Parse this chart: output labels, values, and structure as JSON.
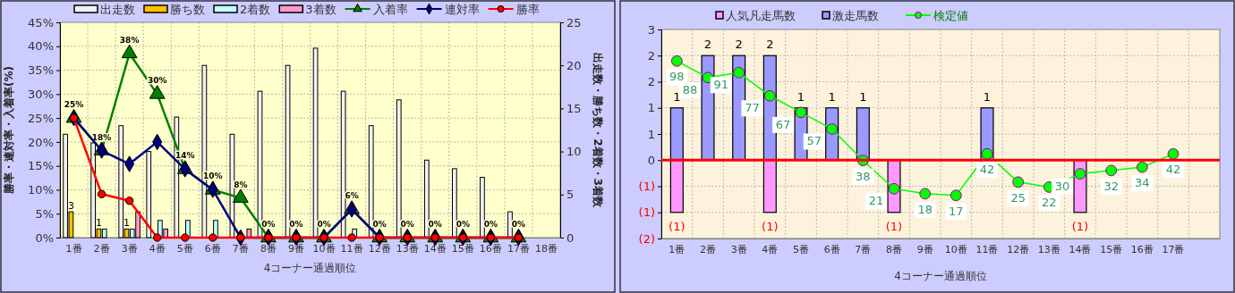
{
  "chart_data": [
    {
      "type": "bar",
      "xlabel": "4コーナー通過順位",
      "ylabel": "勝率・連対率・入着率(%)",
      "y2label": "出走数・勝ち数・2着数・3着数",
      "categories": [
        "1番",
        "2番",
        "3番",
        "4番",
        "5番",
        "6番",
        "7番",
        "8番",
        "9番",
        "10番",
        "11番",
        "12番",
        "13番",
        "14番",
        "15番",
        "16番",
        "17番",
        "18番"
      ],
      "ylim": [
        0,
        45
      ],
      "yticks": [
        {
          "value": 0,
          "label": "0%"
        },
        {
          "value": 5,
          "label": "5%"
        },
        {
          "value": 10,
          "label": "10%"
        },
        {
          "value": 15,
          "label": "15%"
        },
        {
          "value": 20,
          "label": "20%"
        },
        {
          "value": 25,
          "label": "25%"
        },
        {
          "value": 30,
          "label": "30%"
        },
        {
          "value": 35,
          "label": "35%"
        },
        {
          "value": 40,
          "label": "40%"
        },
        {
          "value": 45,
          "label": "45%"
        }
      ],
      "y2lim": [
        0,
        25
      ],
      "y2ticks": [
        0,
        5,
        10,
        15,
        20,
        25
      ],
      "grid": true,
      "legend": "top",
      "series": [
        {
          "name": "出走数",
          "type": "bar",
          "axis": "y2",
          "color": "#f2f2f2",
          "values": [
            12,
            11,
            13,
            10,
            14,
            20,
            12,
            17,
            20,
            22,
            17,
            13,
            16,
            9,
            8,
            7,
            3,
            null
          ]
        },
        {
          "name": "勝ち数",
          "type": "bar",
          "axis": "y2",
          "color": "#ffc000",
          "values": [
            3,
            1,
            1,
            0,
            0,
            0,
            0,
            0,
            0,
            0,
            0,
            0,
            0,
            0,
            0,
            0,
            0,
            null
          ],
          "value_labels": [
            "3",
            "1",
            "1",
            null,
            null,
            null,
            null,
            null,
            null,
            null,
            null,
            null,
            null,
            null,
            null,
            null,
            null,
            null
          ]
        },
        {
          "name": "2着数",
          "type": "bar",
          "axis": "y2",
          "color": "#c0ffff",
          "values": [
            0,
            1,
            1,
            2,
            2,
            2,
            0,
            0,
            0,
            0,
            1,
            0,
            0,
            0,
            0,
            0,
            0,
            null
          ]
        },
        {
          "name": "3着数",
          "type": "bar",
          "axis": "y2",
          "color": "#ff99cc",
          "values": [
            0,
            0,
            3,
            1,
            0,
            0,
            1,
            0,
            0,
            0,
            0,
            0,
            0,
            0,
            0,
            0,
            0,
            null
          ]
        },
        {
          "name": "入着率",
          "type": "line",
          "color": "#008000",
          "marker": "triangle",
          "values": [
            25,
            18.2,
            38.5,
            30,
            14.3,
            10,
            8.3,
            0,
            0,
            0,
            5.9,
            0,
            0,
            0,
            0,
            0,
            0,
            null
          ],
          "value_labels": [
            "25%",
            "18%",
            "38%",
            "30%",
            "14%",
            "10%",
            "8%",
            "0%",
            "0%",
            "0%",
            "6%",
            "0%",
            "0%",
            "0%",
            "0%",
            "0%",
            "0%",
            null
          ]
        },
        {
          "name": "連対率",
          "type": "line",
          "color": "#000080",
          "marker": "diamond",
          "values": [
            25,
            18.2,
            15.4,
            20,
            14.3,
            10,
            0,
            0,
            0,
            0,
            5.9,
            0,
            0,
            0,
            0,
            0,
            0,
            null
          ]
        },
        {
          "name": "勝率",
          "type": "line",
          "color": "#ff0000",
          "marker": "circle",
          "values": [
            25,
            9.1,
            7.7,
            0,
            0,
            0,
            0,
            0,
            0,
            0,
            0,
            0,
            0,
            0,
            0,
            0,
            0,
            null
          ]
        }
      ]
    },
    {
      "type": "bar",
      "xlabel": "4コーナー通過順位",
      "categories": [
        "1番",
        "2番",
        "3番",
        "4番",
        "5番",
        "6番",
        "7番",
        "8番",
        "9番",
        "10番",
        "11番",
        "12番",
        "13番",
        "14番",
        "15番",
        "16番",
        "17番",
        null
      ],
      "ylim": [
        -1.5,
        2.5
      ],
      "yticks": [
        {
          "value": -1.5,
          "label": "(2)"
        },
        {
          "value": -1,
          "label": "(1)"
        },
        {
          "value": -0.5,
          "label": "(1)"
        },
        {
          "value": 0,
          "label": "0"
        },
        {
          "value": 0.5,
          "label": "1"
        },
        {
          "value": 1,
          "label": "1"
        },
        {
          "value": 1.5,
          "label": "2"
        },
        {
          "value": 2,
          "label": "2"
        },
        {
          "value": 2.5,
          "label": "3"
        }
      ],
      "y2lim": [
        -9,
        117
      ],
      "grid": true,
      "legend": "top",
      "stacked": true,
      "ref_lines": [
        {
          "axis": "y",
          "value": 0,
          "color": "#ff0000"
        }
      ],
      "series": [
        {
          "name": "人気凡走馬数",
          "type": "bar",
          "color": "#ff99ff",
          "values": [
            -1,
            0,
            0,
            -1,
            0,
            0,
            0,
            -1,
            0,
            0,
            0,
            0,
            0,
            -1,
            0,
            0,
            0,
            null
          ],
          "value_labels": [
            "(1)",
            null,
            null,
            "(1)",
            null,
            null,
            null,
            "(1)",
            null,
            null,
            null,
            null,
            null,
            "(1)",
            null,
            null,
            null,
            null
          ]
        },
        {
          "name": "激走馬数",
          "type": "bar",
          "color": "#9999ff",
          "values": [
            1,
            2,
            2,
            2,
            1,
            1,
            1,
            0,
            0,
            0,
            1,
            0,
            0,
            0,
            0,
            0,
            0,
            null
          ],
          "value_labels": [
            "1",
            "2",
            "2",
            "2",
            "1",
            "1",
            "1",
            null,
            null,
            null,
            "1",
            null,
            null,
            null,
            null,
            null,
            null,
            null
          ]
        },
        {
          "name": "検定値",
          "type": "line",
          "axis": "y2",
          "color": "#00ff00",
          "marker": "circle",
          "values": [
            98,
            88,
            91,
            77,
            67,
            57,
            38,
            21,
            18,
            17,
            42,
            25,
            22,
            30,
            32,
            34,
            42,
            null
          ],
          "value_labels": [
            "98",
            "88",
            "91",
            "77",
            "67",
            "57",
            "38",
            "21",
            "18",
            "17",
            "42",
            "25",
            "22",
            "30",
            "32",
            "34",
            "42",
            null
          ]
        }
      ]
    }
  ]
}
